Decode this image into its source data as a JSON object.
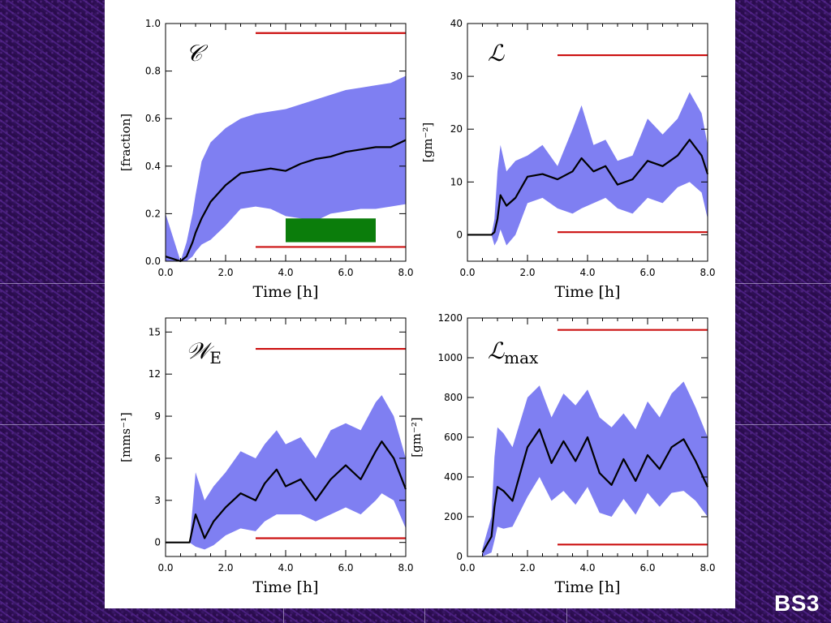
{
  "slide_label": "BS3",
  "colors": {
    "band": "#7f7ff2",
    "line": "#000000",
    "reference": "#cc1010",
    "marker": "#0b7d0b"
  },
  "chart_data": [
    {
      "type": "area",
      "panel_label": "𝒞",
      "panel_sub": "",
      "xlabel": "Time [h]",
      "ylabel": "[fraction]",
      "xlim": [
        0,
        8
      ],
      "ylim": [
        0,
        1
      ],
      "x_ticks": [
        "0.0",
        "2.0",
        "4.0",
        "6.0",
        "8.0"
      ],
      "y_ticks": [
        "0.0",
        "0.2",
        "0.4",
        "0.6",
        "0.8",
        "1.0"
      ],
      "x": [
        0,
        0.5,
        0.7,
        0.9,
        1.0,
        1.2,
        1.5,
        2.0,
        2.5,
        3.0,
        3.5,
        4.0,
        4.5,
        5.0,
        5.5,
        6.0,
        6.5,
        7.0,
        7.5,
        8.0
      ],
      "series": [
        {
          "role": "mean",
          "values": [
            0.02,
            0.0,
            0.02,
            0.08,
            0.12,
            0.18,
            0.25,
            0.32,
            0.37,
            0.38,
            0.39,
            0.38,
            0.41,
            0.43,
            0.44,
            0.46,
            0.47,
            0.48,
            0.48,
            0.51
          ]
        },
        {
          "role": "upper",
          "values": [
            0.2,
            0.0,
            0.08,
            0.2,
            0.28,
            0.42,
            0.5,
            0.56,
            0.6,
            0.62,
            0.63,
            0.64,
            0.66,
            0.68,
            0.7,
            0.72,
            0.73,
            0.74,
            0.75,
            0.78
          ]
        },
        {
          "role": "lower",
          "values": [
            0.0,
            0.0,
            0.0,
            0.02,
            0.04,
            0.07,
            0.09,
            0.15,
            0.22,
            0.23,
            0.22,
            0.19,
            0.18,
            0.17,
            0.2,
            0.21,
            0.22,
            0.22,
            0.23,
            0.24
          ]
        }
      ],
      "reference_lines": [
        0.96,
        0.06
      ],
      "reference_xrange": [
        3,
        8
      ],
      "marker_box": {
        "x0": 4.0,
        "x1": 7.0,
        "y0": 0.08,
        "y1": 0.18
      }
    },
    {
      "type": "area",
      "panel_label": "ℒ",
      "panel_sub": "",
      "xlabel": "Time [h]",
      "ylabel": "[gm⁻²]",
      "xlim": [
        0,
        8
      ],
      "ylim": [
        -5,
        40
      ],
      "x_ticks": [
        "0.0",
        "2.0",
        "4.0",
        "6.0",
        "8.0"
      ],
      "y_ticks": [
        "0",
        "10",
        "20",
        "30",
        "40"
      ],
      "x": [
        0,
        0.8,
        0.9,
        1.0,
        1.1,
        1.3,
        1.6,
        2.0,
        2.5,
        3.0,
        3.5,
        3.8,
        4.2,
        4.6,
        5.0,
        5.5,
        6.0,
        6.5,
        7.0,
        7.4,
        7.8,
        8.0
      ],
      "series": [
        {
          "role": "mean",
          "values": [
            0,
            0,
            0.5,
            3,
            7.5,
            5.5,
            7,
            11,
            11.5,
            10.5,
            12,
            14.5,
            12,
            13,
            9.5,
            10.5,
            14,
            13,
            15,
            18,
            15,
            11.5
          ]
        },
        {
          "role": "upper",
          "values": [
            0,
            0,
            3,
            12,
            17,
            12,
            14,
            15,
            17,
            13,
            20,
            24.5,
            17,
            18,
            14,
            15,
            22,
            19,
            22,
            27,
            23,
            17
          ]
        },
        {
          "role": "lower",
          "values": [
            0,
            0,
            -2,
            -1,
            1,
            -2,
            0,
            6,
            7,
            5,
            4,
            5,
            6,
            7,
            5,
            4,
            7,
            6,
            9,
            10,
            8,
            3
          ]
        }
      ],
      "reference_lines": [
        34,
        0.5
      ],
      "reference_xrange": [
        3,
        8
      ]
    },
    {
      "type": "area",
      "panel_label": "𝒲",
      "panel_sub": "E",
      "xlabel": "Time [h]",
      "ylabel": "[mms⁻¹]",
      "xlim": [
        0,
        8
      ],
      "ylim": [
        -1,
        16
      ],
      "x_ticks": [
        "0.0",
        "2.0",
        "4.0",
        "6.0",
        "8.0"
      ],
      "y_ticks": [
        "0",
        "3",
        "6",
        "9",
        "12",
        "15"
      ],
      "x": [
        0,
        0.8,
        1.0,
        1.3,
        1.6,
        2.0,
        2.5,
        3.0,
        3.3,
        3.7,
        4.0,
        4.5,
        5.0,
        5.5,
        6.0,
        6.5,
        7.0,
        7.2,
        7.6,
        8.0
      ],
      "series": [
        {
          "role": "mean",
          "values": [
            0,
            0,
            2,
            0.3,
            1.5,
            2.5,
            3.5,
            3,
            4.2,
            5.2,
            4,
            4.5,
            3,
            4.5,
            5.5,
            4.5,
            6.5,
            7.2,
            6,
            3.8
          ]
        },
        {
          "role": "upper",
          "values": [
            0,
            0,
            5,
            3,
            4,
            5,
            6.5,
            6,
            7,
            8,
            7,
            7.5,
            6,
            8,
            8.5,
            8,
            10,
            10.5,
            9,
            6
          ]
        },
        {
          "role": "lower",
          "values": [
            0,
            0,
            -0.3,
            -0.5,
            -0.2,
            0.5,
            1,
            0.8,
            1.5,
            2,
            2,
            2,
            1.5,
            2,
            2.5,
            2,
            3,
            3.5,
            3,
            1
          ]
        }
      ],
      "reference_lines": [
        13.8,
        0.3
      ],
      "reference_xrange": [
        3,
        8
      ]
    },
    {
      "type": "area",
      "panel_label": "ℒ",
      "panel_sub": "max",
      "xlabel": "Time [h]",
      "ylabel": "[gm⁻²]",
      "xlim": [
        0,
        8
      ],
      "ylim": [
        0,
        1200
      ],
      "x_ticks": [
        "0.0",
        "2.0",
        "4.0",
        "6.0",
        "8.0"
      ],
      "y_ticks": [
        "0",
        "200",
        "400",
        "600",
        "800",
        "1000",
        "1200"
      ],
      "x": [
        0,
        0.5,
        0.8,
        0.9,
        1.0,
        1.2,
        1.5,
        2.0,
        2.4,
        2.8,
        3.2,
        3.6,
        4.0,
        4.4,
        4.8,
        5.2,
        5.6,
        6.0,
        6.4,
        6.8,
        7.2,
        7.6,
        8.0
      ],
      "series": [
        {
          "role": "mean",
          "values": [
            null,
            20,
            100,
            250,
            350,
            330,
            280,
            550,
            640,
            470,
            580,
            480,
            600,
            420,
            360,
            490,
            380,
            510,
            440,
            550,
            590,
            480,
            350
          ]
        },
        {
          "role": "upper",
          "values": [
            null,
            40,
            200,
            500,
            650,
            620,
            550,
            800,
            860,
            700,
            820,
            760,
            840,
            700,
            650,
            720,
            640,
            780,
            700,
            820,
            880,
            750,
            600
          ]
        },
        {
          "role": "lower",
          "values": [
            null,
            0,
            20,
            80,
            150,
            140,
            150,
            300,
            400,
            280,
            330,
            260,
            350,
            220,
            200,
            290,
            210,
            320,
            250,
            320,
            330,
            280,
            200
          ]
        }
      ],
      "reference_lines": [
        1140,
        60
      ],
      "reference_xrange": [
        3,
        8
      ]
    }
  ]
}
